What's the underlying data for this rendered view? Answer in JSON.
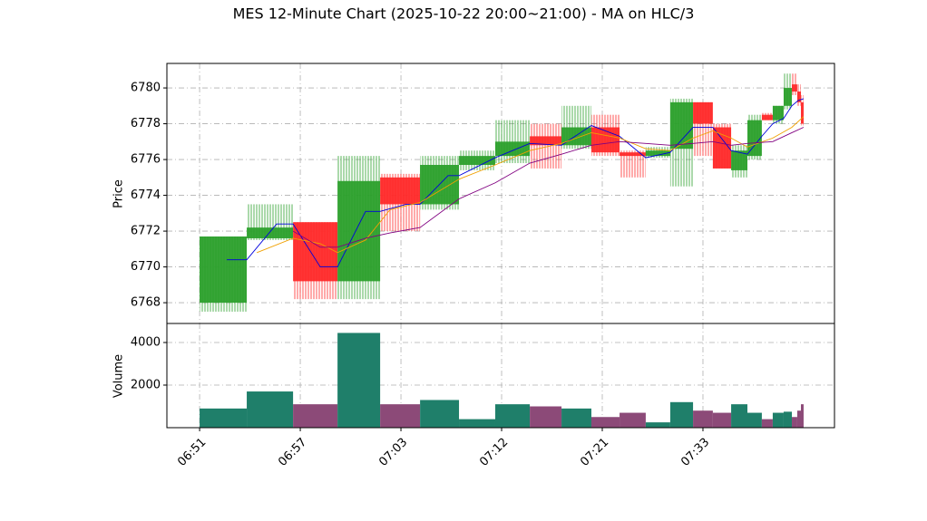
{
  "chart_data": {
    "type": "candlestick",
    "title": "MES 12-Minute Chart (2025-10-22 20:00~21:00) - MA on HLC/3",
    "ylabel": "Price",
    "volume_label": "Volume",
    "up_color": "#2ca02c",
    "down_color": "#ff2a2a",
    "volume_up_color": "#1f7f6a",
    "volume_down_color": "#8c4a78",
    "grid": true,
    "xlim": [
      -1.95,
      37.84
    ],
    "xticks": [
      {
        "value": 0,
        "label": "06:51"
      },
      {
        "value": 6,
        "label": "06:57"
      },
      {
        "value": 12,
        "label": "07:03"
      },
      {
        "value": 18,
        "label": "07:12"
      },
      {
        "value": 24,
        "label": "07:21"
      },
      {
        "value": 30,
        "label": "07:33"
      }
    ],
    "ylim": [
      6766.84,
      6781.37
    ],
    "yticks": [
      6768,
      6770,
      6772,
      6774,
      6776,
      6778,
      6780
    ],
    "y2lim": [
      0,
      4894
    ],
    "y2ticks": [
      2000,
      4000
    ],
    "x_start": [
      0,
      2.81,
      5.57,
      8.22,
      10.76,
      13.14,
      15.46,
      17.62,
      19.68,
      21.57,
      23.35,
      25.03,
      26.59,
      28.05,
      29.41,
      30.59,
      31.68,
      32.65,
      33.51,
      34.16,
      34.81,
      35.3,
      35.62,
      35.84
    ],
    "x_end": [
      2.81,
      5.57,
      8.22,
      10.76,
      13.14,
      15.46,
      17.62,
      19.68,
      21.57,
      23.35,
      25.03,
      26.59,
      28.05,
      29.41,
      30.59,
      31.68,
      32.65,
      33.51,
      34.16,
      34.81,
      35.3,
      35.62,
      35.84,
      36
    ],
    "open": [
      6768,
      6771.6,
      6772.5,
      6769.2,
      6775,
      6773.5,
      6775.7,
      6776.2,
      6777.3,
      6776.8,
      6777.8,
      6776.4,
      6776.2,
      6776.6,
      6779.2,
      6777.8,
      6775.4,
      6776.2,
      6778.5,
      6778.2,
      6779,
      6780.2,
      6779.8,
      6779.2
    ],
    "high": [
      6771.7,
      6773.5,
      6772.5,
      6776.2,
      6775.2,
      6776.2,
      6776.5,
      6778.2,
      6778,
      6779,
      6778.5,
      6776.5,
      6776.7,
      6779.4,
      6779.2,
      6778,
      6776.8,
      6778.5,
      6778.6,
      6779,
      6780.8,
      6780.8,
      6780.2,
      6779.6
    ],
    "low": [
      6767.5,
      6771.5,
      6768.2,
      6768.2,
      6772,
      6773.2,
      6775.4,
      6775.8,
      6775.5,
      6776.6,
      6776.2,
      6775,
      6776.1,
      6774.5,
      6776.2,
      6775.5,
      6775,
      6776,
      6778.2,
      6778,
      6778.8,
      6779.6,
      6779,
      6777.9
    ],
    "close": [
      6771.7,
      6772.2,
      6769.2,
      6774.8,
      6773.5,
      6775.7,
      6776.2,
      6777,
      6776.8,
      6777.8,
      6776.4,
      6776.2,
      6776.5,
      6779.2,
      6778,
      6775.5,
      6776.5,
      6778.2,
      6778.2,
      6779,
      6780,
      6779.8,
      6779.2,
      6778
    ],
    "volume": [
      900,
      1700,
      1100,
      4450,
      1100,
      1300,
      400,
      1100,
      1000,
      900,
      500,
      700,
      250,
      1200,
      800,
      700,
      1100,
      700,
      400,
      700,
      750,
      500,
      800,
      1100
    ],
    "lines": [
      {
        "color": "#0000dd",
        "x": [
          1.62,
          2.81,
          4.59,
          5.57,
          7.19,
          8.22,
          9.89,
          10.76,
          12.32,
          13.14,
          14.81,
          15.46,
          17.62,
          19.68,
          21.57,
          23.35,
          25.03,
          26.59,
          28.05,
          29.41,
          30.59,
          31.68,
          32.65,
          33.51,
          34.16,
          34.81,
          35.3,
          35.68,
          36
        ],
        "values": [
          6770.4,
          6770.4,
          6772.4,
          6772.4,
          6770,
          6770,
          6773.1,
          6773.1,
          6773.5,
          6773.5,
          6775.1,
          6775.1,
          6776.1,
          6776.9,
          6776.8,
          6777.9,
          6777.3,
          6776.1,
          6776.4,
          6777.8,
          6777.8,
          6776.5,
          6776.3,
          6777.3,
          6778,
          6778.3,
          6779,
          6779.3,
          6779.4
        ]
      },
      {
        "color": "#f0a000",
        "x": [
          3.41,
          5.57,
          7.19,
          8.22,
          9.89,
          11.35,
          13.14,
          15.46,
          17.62,
          19.68,
          21.57,
          23.35,
          25.03,
          26.59,
          28.05,
          29.41,
          30.59,
          31.68,
          32.65,
          34.16,
          35.3,
          36
        ],
        "values": [
          6770.8,
          6771.6,
          6771.3,
          6770.8,
          6771.5,
          6773.2,
          6773.6,
          6774.9,
          6775.7,
          6776.5,
          6776.9,
          6777.5,
          6777.2,
          6776.6,
          6776.5,
          6777.2,
          6777.6,
          6777.2,
          6776.7,
          6777.2,
          6777.8,
          6778.4
        ]
      },
      {
        "color": "#800080",
        "x": [
          5.57,
          7.19,
          8.22,
          9.89,
          11.35,
          13.14,
          15.46,
          17.62,
          19.68,
          21.57,
          23.35,
          25.03,
          26.59,
          28.05,
          29.41,
          30.59,
          31.68,
          32.65,
          34.16,
          35.3,
          36
        ],
        "values": [
          6772,
          6771.1,
          6771.1,
          6771.6,
          6771.9,
          6772.2,
          6773.8,
          6774.7,
          6775.8,
          6776.3,
          6776.8,
          6777,
          6776.9,
          6776.8,
          6776.9,
          6777,
          6776.8,
          6776.9,
          6777,
          6777.5,
          6777.8
        ]
      }
    ]
  }
}
